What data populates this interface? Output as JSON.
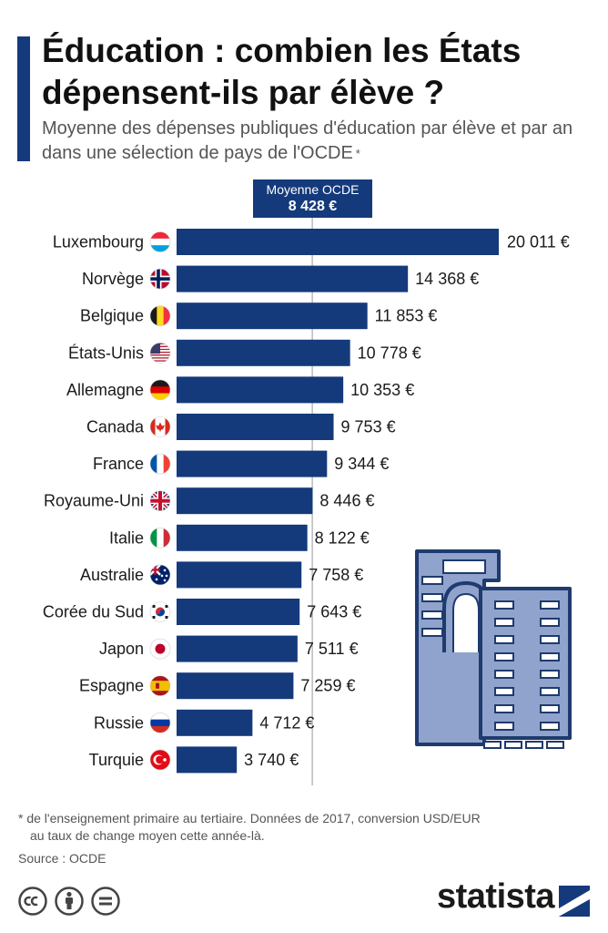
{
  "header": {
    "title": "Éducation : combien les États dépensent-ils par élève ?",
    "subtitle": "Moyenne des dépenses publiques d'éducation par élève et par an dans une sélection de pays de l'OCDE",
    "subtitle_marker": "*"
  },
  "average": {
    "label": "Moyenne OCDE",
    "value_label": "8 428 €",
    "value": 8428
  },
  "chart_data": {
    "type": "bar",
    "orientation": "horizontal",
    "categories": [
      "Luxembourg",
      "Norvège",
      "Belgique",
      "États-Unis",
      "Allemagne",
      "Canada",
      "France",
      "Royaume-Uni",
      "Italie",
      "Australie",
      "Corée du Sud",
      "Japon",
      "Espagne",
      "Russie",
      "Turquie"
    ],
    "values": [
      20011,
      14368,
      11853,
      10778,
      10353,
      9753,
      9344,
      8446,
      8122,
      7758,
      7643,
      7511,
      7259,
      4712,
      3740
    ],
    "value_labels": [
      "20 011 €",
      "14 368 €",
      "11 853 €",
      "10 778 €",
      "10 353 €",
      "9 753 €",
      "9 344 €",
      "8 446 €",
      "8 122 €",
      "7 758 €",
      "7 643 €",
      "7 511 €",
      "7 259 €",
      "4 712 €",
      "3 740 €"
    ],
    "flags": [
      "luxembourg-flag",
      "norway-flag",
      "belgium-flag",
      "usa-flag",
      "germany-flag",
      "canada-flag",
      "france-flag",
      "uk-flag",
      "italy-flag",
      "australia-flag",
      "south-korea-flag",
      "japan-flag",
      "spain-flag",
      "russia-flag",
      "turkey-flag"
    ],
    "xlim": [
      0,
      20011
    ],
    "reference_line": 8428,
    "bar_color": "#143a7b",
    "grid": false
  },
  "footer": {
    "footnote_line1": "* de l'enseignement primaire au tertiaire. Données de 2017, conversion USD/EUR",
    "footnote_line2": "au taux de change moyen cette année-là.",
    "source": "Source : OCDE",
    "brand": "statista"
  },
  "colors": {
    "accent": "#143a7b",
    "illustration_fill": "#8fa3cc",
    "illustration_stroke": "#1f3a6e"
  }
}
